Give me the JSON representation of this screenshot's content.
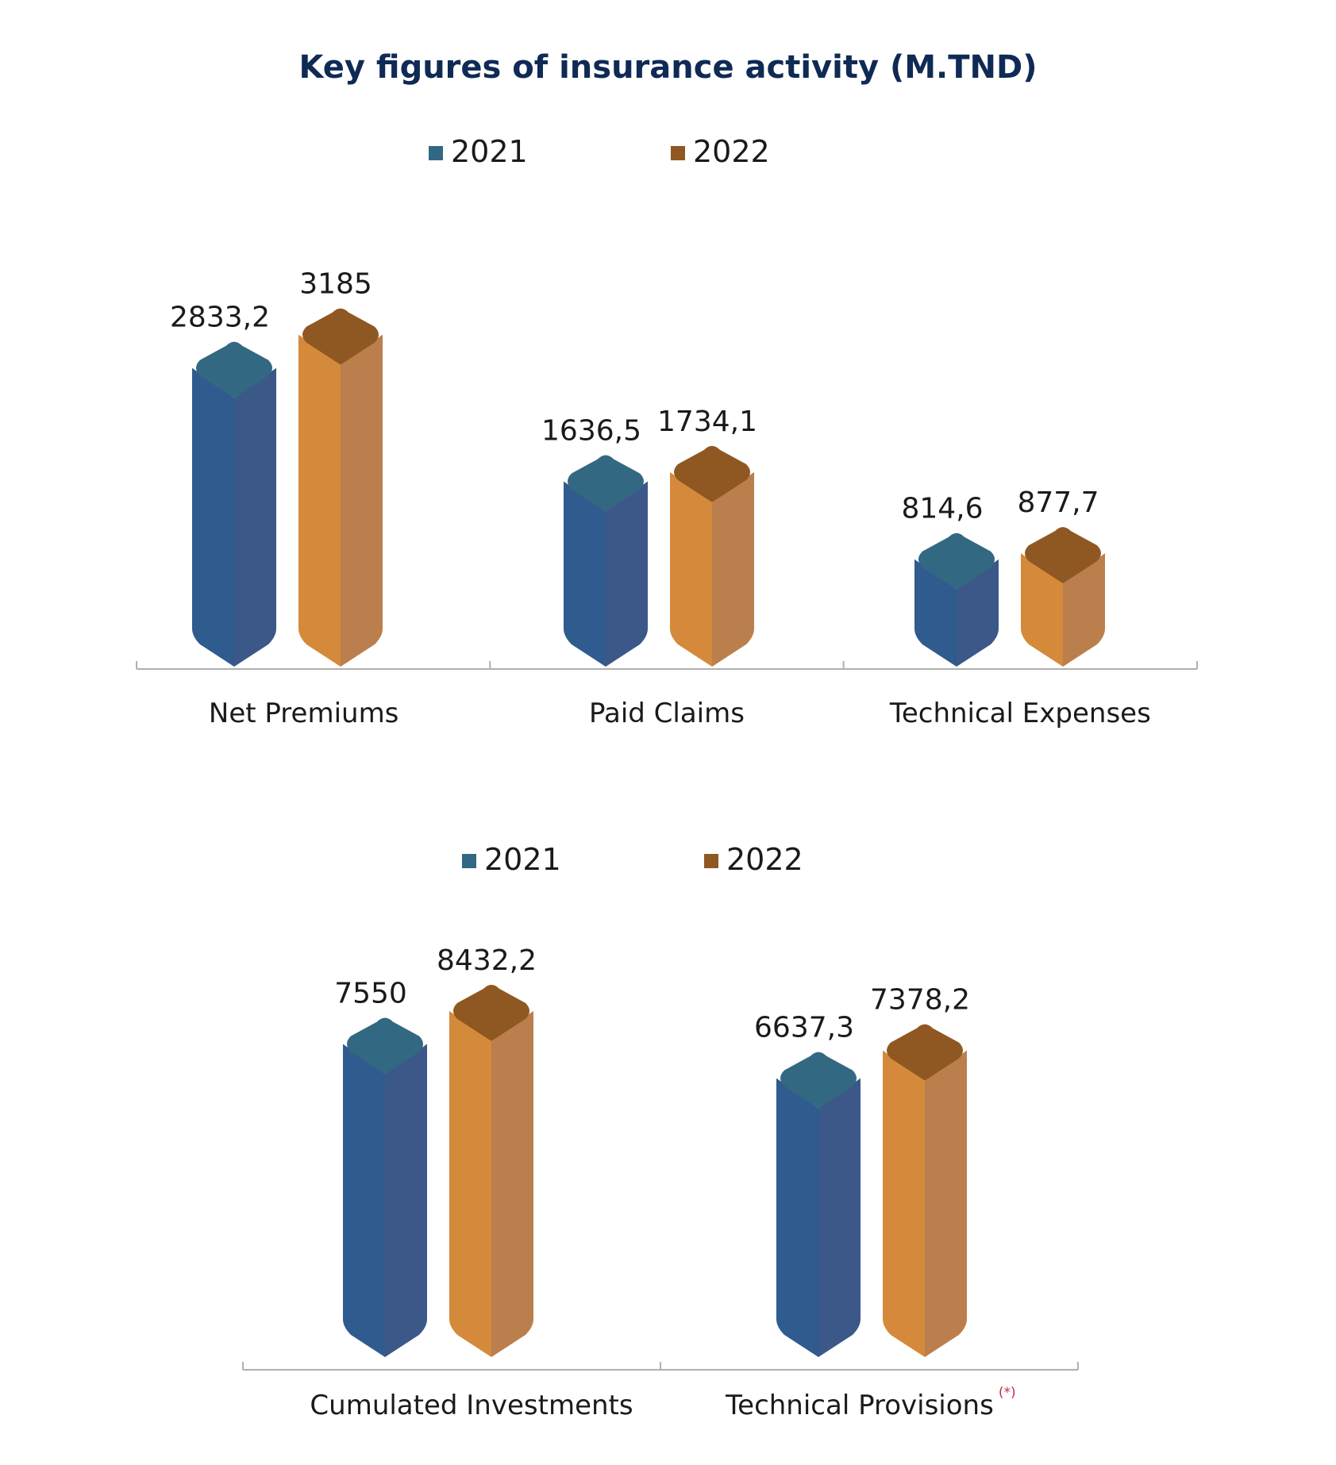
{
  "title": "Key figures of insurance activity (M.TND)",
  "chart_data": [
    {
      "type": "bar",
      "categories": [
        "Net Premiums",
        "Paid Claims",
        "Technical Expenses"
      ],
      "series": [
        {
          "name": "2021",
          "values": [
            2833.2,
            1636.5,
            814.6
          ],
          "labels": [
            "2833,2",
            "1636,5",
            "814,6"
          ],
          "color": "#2f5b8f"
        },
        {
          "name": "2022",
          "values": [
            3185,
            1734.1,
            877.7
          ],
          "labels": [
            "3185",
            "1734,1",
            "877,7"
          ],
          "color": "#d48a3a"
        }
      ],
      "legend": "top",
      "category_notes": [
        "",
        "",
        ""
      ]
    },
    {
      "type": "bar",
      "categories": [
        "Cumulated Investments",
        "Technical Provisions"
      ],
      "series": [
        {
          "name": "2021",
          "values": [
            7550,
            6637.3
          ],
          "labels": [
            "7550",
            "6637,3"
          ],
          "color": "#2f5b8f"
        },
        {
          "name": "2022",
          "values": [
            8432.2,
            7378.2
          ],
          "labels": [
            "8432,2",
            "7378,2"
          ],
          "color": "#d48a3a"
        }
      ],
      "legend": "top",
      "category_notes": [
        "",
        "(*)"
      ]
    }
  ],
  "colors": {
    "series_2021_front": "#2f5b8f",
    "series_2021_side": "#3b5888",
    "series_2021_top": "#336882",
    "series_2022_front": "#d48a3a",
    "series_2022_side": "#bb7f4d",
    "series_2022_top": "#8f5822",
    "legend_2021": "#336882",
    "legend_2022": "#8f5822",
    "title": "#0f2a55",
    "axis": "#b0b0b0"
  }
}
